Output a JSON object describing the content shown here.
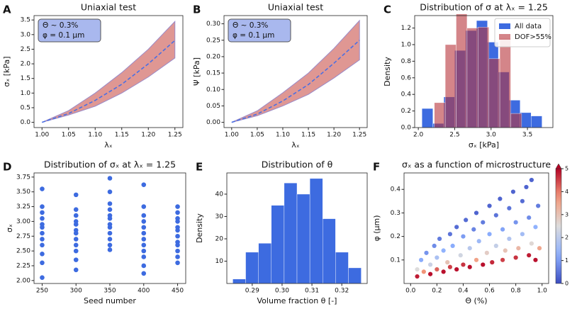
{
  "chart_data": [
    {
      "label": "A",
      "type": "line",
      "title": "Uniaxial test",
      "xlabel": "λₓ",
      "ylabel": "σₓ [kPa]",
      "annotation": [
        "Θ ~ 0.3%",
        "φ = 0.1 µm"
      ],
      "x": [
        1.0,
        1.05,
        1.1,
        1.15,
        1.2,
        1.25
      ],
      "values": [
        0,
        0.3,
        0.75,
        1.3,
        2.0,
        2.8
      ],
      "upper": [
        0,
        0.4,
        1.0,
        1.7,
        2.5,
        3.45
      ],
      "lower": [
        0,
        0.25,
        0.55,
        1.0,
        1.55,
        2.2
      ],
      "color": "#4a6fe3",
      "band_color": "#d98580",
      "xlim": [
        0.985,
        1.265
      ],
      "xticks": [
        {
          "value": 1.0,
          "label": "1.00"
        },
        {
          "value": 1.05,
          "label": "1.05"
        },
        {
          "value": 1.1,
          "label": "1.10"
        },
        {
          "value": 1.15,
          "label": "1.15"
        },
        {
          "value": 1.2,
          "label": "1.20"
        },
        {
          "value": 1.25,
          "label": "1.25"
        }
      ],
      "ylim": [
        -0.18,
        3.65
      ],
      "yticks": [
        {
          "value": 0,
          "label": "0.0"
        },
        {
          "value": 0.5,
          "label": "0.5"
        },
        {
          "value": 1,
          "label": "1.0"
        },
        {
          "value": 1.5,
          "label": "1.5"
        },
        {
          "value": 2,
          "label": "2.0"
        },
        {
          "value": 2.5,
          "label": "2.5"
        },
        {
          "value": 3,
          "label": "3.0"
        },
        {
          "value": 3.5,
          "label": "3.5"
        }
      ]
    },
    {
      "label": "B",
      "type": "line",
      "title": "Uniaxial test",
      "xlabel": "λₓ",
      "ylabel": "Ψ [kPa]",
      "annotation": [
        "Θ ~ 0.3%",
        "φ = 0.1 µm"
      ],
      "x": [
        1.0,
        1.05,
        1.1,
        1.15,
        1.2,
        1.25
      ],
      "values": [
        0,
        0.025,
        0.065,
        0.115,
        0.18,
        0.25
      ],
      "upper": [
        0,
        0.035,
        0.09,
        0.15,
        0.225,
        0.31
      ],
      "lower": [
        0,
        0.02,
        0.05,
        0.085,
        0.135,
        0.19
      ],
      "color": "#4a6fe3",
      "band_color": "#d98580",
      "xlim": [
        0.985,
        1.265
      ],
      "xticks": [
        {
          "value": 1.0,
          "label": "1.00"
        },
        {
          "value": 1.05,
          "label": "1.05"
        },
        {
          "value": 1.1,
          "label": "1.10"
        },
        {
          "value": 1.15,
          "label": "1.15"
        },
        {
          "value": 1.2,
          "label": "1.20"
        },
        {
          "value": 1.25,
          "label": "1.25"
        }
      ],
      "ylim": [
        -0.016,
        0.325
      ],
      "yticks": [
        {
          "value": 0,
          "label": "0.00"
        },
        {
          "value": 0.05,
          "label": "0.05"
        },
        {
          "value": 0.1,
          "label": "0.10"
        },
        {
          "value": 0.15,
          "label": "0.15"
        },
        {
          "value": 0.2,
          "label": "0.20"
        },
        {
          "value": 0.25,
          "label": "0.25"
        },
        {
          "value": 0.3,
          "label": "0.30"
        }
      ]
    },
    {
      "label": "C",
      "type": "histogram",
      "title": "Distribution of σ at λₓ = 1.25",
      "xlabel": "σₓ [kPa]",
      "ylabel": "Density",
      "legend": "upper right",
      "series": [
        {
          "name": "All data",
          "color": "#3d6be0",
          "opacity": 1,
          "bins": [
            2.05,
            2.2,
            2.35,
            2.5,
            2.65,
            2.8,
            2.95,
            3.1,
            3.25,
            3.4,
            3.55,
            3.7
          ],
          "values": [
            0.23,
            0.05,
            0.37,
            0.93,
            1.17,
            1.29,
            1.03,
            0.67,
            0.33,
            0.18,
            0.14
          ]
        },
        {
          "name": "DOF>55%",
          "color": "#b8343a",
          "opacity": 0.6,
          "bins": [
            2.22,
            2.37,
            2.52,
            2.67,
            2.82,
            2.97,
            3.12,
            3.27,
            3.42
          ],
          "values": [
            0.3,
            1.0,
            1.37,
            1.2,
            1.21,
            0.83,
            1.08,
            0.17
          ]
        }
      ],
      "xlim": [
        1.95,
        3.85
      ],
      "xticks": [
        {
          "value": 2,
          "label": "2.0"
        },
        {
          "value": 2.5,
          "label": "2.5"
        },
        {
          "value": 3,
          "label": "3.0"
        },
        {
          "value": 3.5,
          "label": "3.5"
        }
      ],
      "ylim": [
        0,
        1.35
      ],
      "yticks": [
        {
          "value": 0,
          "label": "0.0"
        },
        {
          "value": 0.2,
          "label": "0.2"
        },
        {
          "value": 0.4,
          "label": "0.4"
        },
        {
          "value": 0.6,
          "label": "0.6"
        },
        {
          "value": 0.8,
          "label": "0.8"
        },
        {
          "value": 1,
          "label": "1.0"
        },
        {
          "value": 1.2,
          "label": "1.2"
        }
      ]
    },
    {
      "label": "D",
      "type": "scatter",
      "title": "Distribution of σₓ at λₓ = 1.25",
      "xlabel": "Seed number",
      "ylabel": "σₓ",
      "color": "#3d6be0",
      "x": [
        250,
        250,
        250,
        250,
        250,
        250,
        250,
        250,
        250,
        250,
        250,
        250,
        300,
        300,
        300,
        300,
        300,
        300,
        300,
        300,
        300,
        300,
        300,
        300,
        350,
        350,
        350,
        350,
        350,
        350,
        350,
        350,
        350,
        350,
        350,
        350,
        400,
        400,
        400,
        400,
        400,
        400,
        400,
        400,
        400,
        400,
        400,
        400,
        450,
        450,
        450,
        450,
        450,
        450,
        450,
        450,
        450,
        450,
        450,
        450
      ],
      "values": [
        3.55,
        3.25,
        3.15,
        3.05,
        2.95,
        2.9,
        2.8,
        2.7,
        2.6,
        2.45,
        2.3,
        2.05,
        3.45,
        3.2,
        3.1,
        3.0,
        2.95,
        2.85,
        2.8,
        2.7,
        2.6,
        2.5,
        2.35,
        2.18,
        3.73,
        3.5,
        3.3,
        3.2,
        3.1,
        3.05,
        2.95,
        2.9,
        2.8,
        2.7,
        2.6,
        2.52,
        3.62,
        3.25,
        3.1,
        3.0,
        2.9,
        2.8,
        2.7,
        2.6,
        2.5,
        2.4,
        2.25,
        2.12,
        3.25,
        3.15,
        3.05,
        3.0,
        2.9,
        2.85,
        2.75,
        2.65,
        2.6,
        2.5,
        2.4,
        2.3
      ],
      "xlim": [
        238,
        462
      ],
      "xticks": [
        250,
        300,
        350,
        400,
        450
      ],
      "ylim": [
        1.95,
        3.82
      ],
      "yticks": [
        {
          "value": 2,
          "label": "2.00"
        },
        {
          "value": 2.25,
          "label": "2.25"
        },
        {
          "value": 2.5,
          "label": "2.50"
        },
        {
          "value": 2.75,
          "label": "2.75"
        },
        {
          "value": 3,
          "label": "3.00"
        },
        {
          "value": 3.25,
          "label": "3.25"
        },
        {
          "value": 3.5,
          "label": "3.50"
        },
        {
          "value": 3.75,
          "label": "3.75"
        }
      ]
    },
    {
      "label": "E",
      "type": "histogram",
      "title": "Distribution of θ",
      "xlabel": "Volume fraction θ [-]",
      "ylabel": "Density",
      "series": [
        {
          "color": "#3d6be0",
          "opacity": 1,
          "bins": [
            0.2835,
            0.2878,
            0.2921,
            0.2964,
            0.3007,
            0.305,
            0.3093,
            0.3136,
            0.3179,
            0.3222,
            0.3265
          ],
          "values": [
            2,
            14,
            18,
            35,
            45,
            40,
            47,
            29,
            14,
            7
          ]
        }
      ],
      "xlim": [
        0.2815,
        0.3285
      ],
      "xticks": [
        0.29,
        {
          "value": 0.3,
          "label": "0.30"
        },
        0.31,
        0.32
      ],
      "ylim": [
        0,
        49.5
      ],
      "yticks": [
        10,
        20,
        30,
        40
      ]
    },
    {
      "label": "F",
      "type": "scatter",
      "title": "σₓ as a function of microstructure",
      "xlabel": "Θ (%)",
      "ylabel": "φ (µm)",
      "colormap": "coolwarm",
      "clim": [
        0,
        5
      ],
      "cticks": [
        0,
        1,
        2,
        3,
        4,
        5
      ],
      "x": [
        0.05,
        0.05,
        0.08,
        0.1,
        0.12,
        0.15,
        0.15,
        0.18,
        0.2,
        0.2,
        0.22,
        0.25,
        0.25,
        0.28,
        0.3,
        0.3,
        0.32,
        0.35,
        0.35,
        0.38,
        0.4,
        0.4,
        0.42,
        0.45,
        0.45,
        0.48,
        0.5,
        0.5,
        0.52,
        0.55,
        0.55,
        0.58,
        0.6,
        0.6,
        0.62,
        0.65,
        0.65,
        0.68,
        0.7,
        0.7,
        0.72,
        0.75,
        0.75,
        0.78,
        0.8,
        0.8,
        0.82,
        0.85,
        0.85,
        0.88,
        0.9,
        0.9,
        0.92,
        0.92,
        0.95,
        0.95,
        0.97,
        0.98
      ],
      "values": [
        0.03,
        0.06,
        0.1,
        0.05,
        0.13,
        0.04,
        0.08,
        0.16,
        0.06,
        0.11,
        0.19,
        0.05,
        0.14,
        0.09,
        0.21,
        0.07,
        0.16,
        0.06,
        0.24,
        0.12,
        0.2,
        0.08,
        0.27,
        0.15,
        0.07,
        0.23,
        0.1,
        0.3,
        0.18,
        0.08,
        0.26,
        0.13,
        0.33,
        0.21,
        0.09,
        0.16,
        0.29,
        0.36,
        0.1,
        0.23,
        0.14,
        0.32,
        0.19,
        0.39,
        0.11,
        0.26,
        0.15,
        0.35,
        0.21,
        0.41,
        0.12,
        0.28,
        0.17,
        0.44,
        0.24,
        0.1,
        0.33,
        0.15
      ],
      "colors": [
        4.8,
        2.5,
        1.2,
        3.8,
        0.9,
        4.9,
        2.2,
        0.8,
        4.2,
        1.7,
        0.6,
        4.9,
        1.3,
        3.0,
        0.5,
        4.5,
        1.2,
        4.9,
        0.4,
        2.3,
        1.0,
        4.6,
        0.4,
        1.9,
        4.9,
        0.7,
        3.6,
        0.3,
        1.5,
        4.9,
        0.6,
        2.8,
        0.3,
        1.2,
        4.7,
        2.1,
        0.5,
        0.3,
        4.5,
        1.1,
        3.0,
        0.5,
        1.8,
        0.3,
        4.6,
        0.9,
        3.2,
        0.4,
        1.6,
        0.3,
        4.8,
        0.8,
        2.6,
        0.3,
        1.3,
        4.9,
        0.6,
        3.5
      ],
      "xlim": [
        -0.05,
        1.05
      ],
      "xticks": [
        {
          "value": 0,
          "label": "0.0"
        },
        {
          "value": 0.2,
          "label": "0.2"
        },
        {
          "value": 0.4,
          "label": "0.4"
        },
        {
          "value": 0.6,
          "label": "0.6"
        },
        {
          "value": 0.8,
          "label": "0.8"
        },
        {
          "value": 1,
          "label": "1.0"
        }
      ],
      "ylim": [
        0,
        0.47
      ],
      "yticks": [
        {
          "value": 0.1,
          "label": "0.1"
        },
        {
          "value": 0.2,
          "label": "0.2"
        },
        {
          "value": 0.3,
          "label": "0.3"
        },
        {
          "value": 0.4,
          "label": "0.4"
        }
      ]
    }
  ]
}
